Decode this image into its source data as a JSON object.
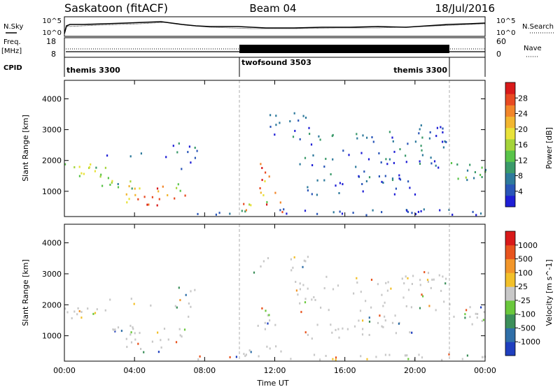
{
  "header": {
    "station": "Saskatoon (fitACF)",
    "beam": "Beam 04",
    "date": "18/Jul/2016"
  },
  "top_panels": {
    "nsky_label": "N.Sky",
    "nsky_ticks": [
      "10^5",
      "10^0"
    ],
    "nsearch_label": "N.Search",
    "nsearch_ticks": [
      "10^5",
      "10^0"
    ],
    "freq_label_1": "Freq.",
    "freq_label_2": "[MHz]",
    "freq_ticks": [
      "18",
      "8"
    ],
    "nave_label": "Nave",
    "nave_ticks": [
      "60",
      "0"
    ],
    "cpid_label": "CPID",
    "cpid_segments": [
      {
        "label": "themis 3300",
        "start_hour": 0,
        "end_hour": 10
      },
      {
        "label": "twofsound 3503",
        "start_hour": 10,
        "end_hour": 22
      },
      {
        "label": "themis 3300",
        "start_hour": 22,
        "end_hour": 24
      }
    ]
  },
  "chart_data": [
    {
      "type": "heatmap",
      "panel": "power",
      "xlabel": "",
      "ylabel": "Slant Range [km]",
      "xlim": [
        0,
        24
      ],
      "ylim": [
        180,
        4600
      ],
      "yticks": [
        "1000",
        "2000",
        "3000",
        "4000"
      ],
      "colorbar_label": "Power [dB]",
      "colorbar_ticks": [
        "4",
        "8",
        "12",
        "16",
        "20",
        "24",
        "28"
      ],
      "colorbar_range": [
        0,
        30
      ],
      "colors": [
        "#1f1fd6",
        "#2a56b8",
        "#2e7a9c",
        "#3a9a6a",
        "#59c44a",
        "#a5d43a",
        "#e8e23a",
        "#f2b630",
        "#f2862a",
        "#e84a22",
        "#d91a1a"
      ]
    },
    {
      "type": "heatmap",
      "panel": "velocity",
      "xlabel": "Time UT",
      "ylabel": "Slant Range [km]",
      "xlim": [
        0,
        24
      ],
      "ylim": [
        180,
        4600
      ],
      "yticks": [
        "1000",
        "2000",
        "3000",
        "4000"
      ],
      "xticks": [
        "00:00",
        "04:00",
        "08:00",
        "12:00",
        "16:00",
        "20:00",
        "00:00"
      ],
      "colorbar_label": "Velocity [m s^-1]",
      "colorbar_ticks": [
        "1000",
        "500",
        "100",
        "25",
        "-25",
        "-100",
        "-500",
        "-1000"
      ],
      "colors": [
        "#1f3fbf",
        "#2f6fa8",
        "#3c8f5a",
        "#6ac83c",
        "#c8c8c8",
        "#f2c02a",
        "#f2962a",
        "#e8541e",
        "#d91a1a"
      ]
    }
  ]
}
